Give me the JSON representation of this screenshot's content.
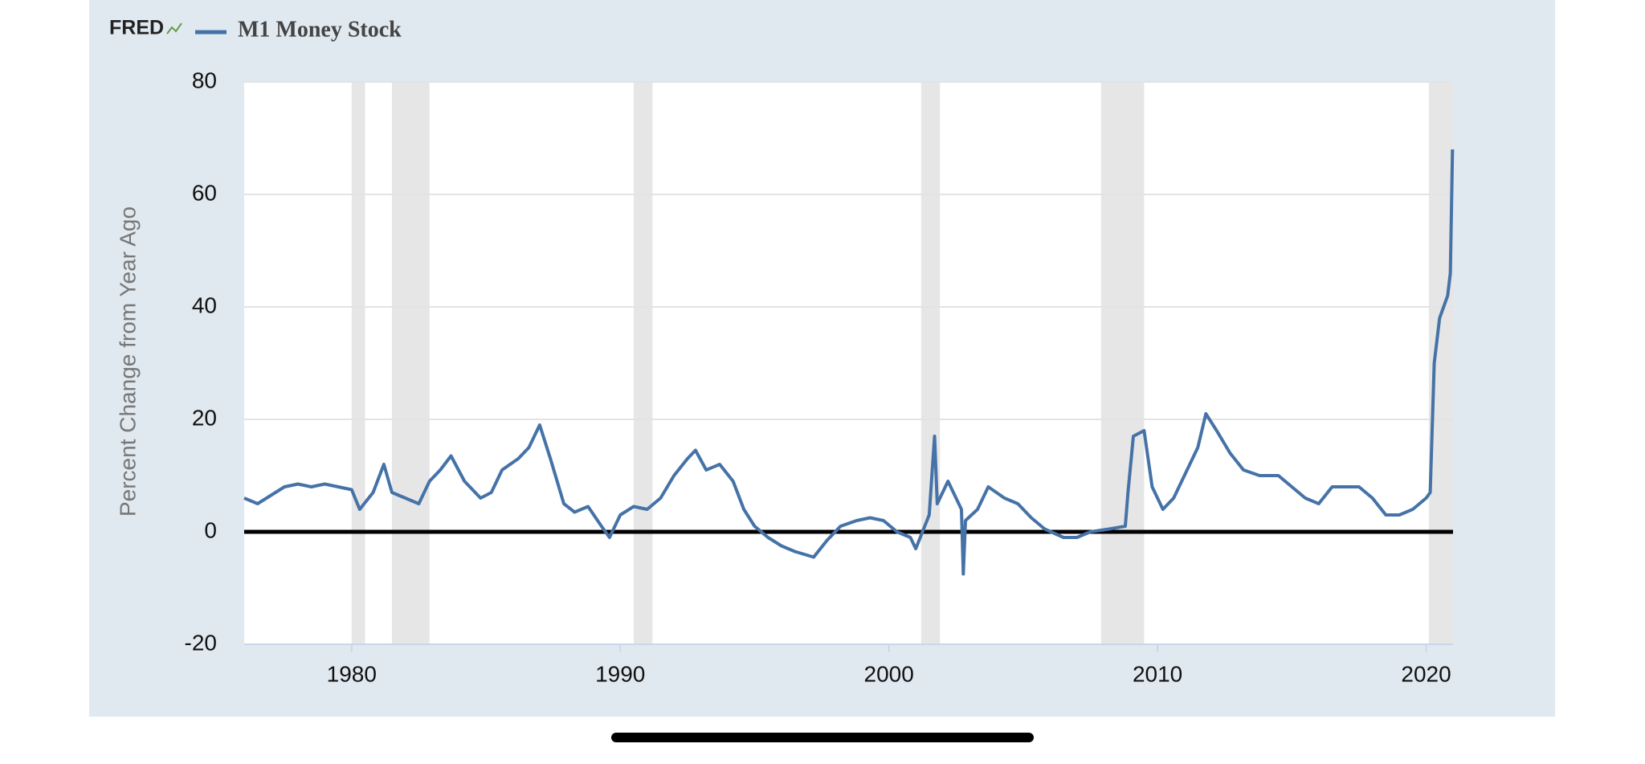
{
  "brand": "FRED",
  "chart_data": {
    "type": "line",
    "ylabel": "Percent Change from Year Ago",
    "xlim": [
      1976,
      2021
    ],
    "xticks": [
      1980,
      1990,
      2000,
      2010,
      2020
    ],
    "ylim": [
      -20,
      80
    ],
    "yticks": [
      -20,
      0,
      20,
      40,
      60,
      80
    ],
    "grid": true,
    "recessions": [
      [
        1980.0,
        1980.5
      ],
      [
        1981.5,
        1982.9
      ],
      [
        1990.5,
        1991.2
      ],
      [
        2001.2,
        2001.9
      ],
      [
        2007.9,
        2009.5
      ],
      [
        2020.1,
        2021
      ]
    ],
    "series": [
      {
        "name": "M1 Money Stock",
        "color": "#4572a7",
        "x": [
          1976.0,
          1976.5,
          1977.0,
          1977.5,
          1978.0,
          1978.5,
          1979.0,
          1979.5,
          1980.0,
          1980.3,
          1980.8,
          1981.2,
          1981.5,
          1982.0,
          1982.5,
          1982.9,
          1983.3,
          1983.7,
          1984.2,
          1984.8,
          1985.2,
          1985.6,
          1986.2,
          1986.6,
          1987.0,
          1987.4,
          1987.9,
          1988.3,
          1988.8,
          1989.3,
          1989.6,
          1990.0,
          1990.5,
          1991.0,
          1991.5,
          1992.0,
          1992.5,
          1992.8,
          1993.2,
          1993.7,
          1994.2,
          1994.6,
          1995.0,
          1995.5,
          1996.0,
          1996.5,
          1997.2,
          1997.7,
          1998.2,
          1998.8,
          1999.3,
          1999.8,
          2000.3,
          2000.8,
          2001.0,
          2001.5,
          2001.7,
          2001.8,
          2002.2,
          2002.7,
          2002.77,
          2002.85,
          2003.3,
          2003.7,
          2004.3,
          2004.8,
          2005.3,
          2005.8,
          2006.5,
          2007.0,
          2007.5,
          2008.2,
          2008.8,
          2008.9,
          2009.1,
          2009.5,
          2009.8,
          2010.2,
          2010.6,
          2011.0,
          2011.5,
          2011.8,
          2012.2,
          2012.7,
          2013.2,
          2013.8,
          2014.5,
          2015.0,
          2015.5,
          2016.0,
          2016.5,
          2017.0,
          2017.5,
          2018.0,
          2018.5,
          2019.0,
          2019.5,
          2020.0,
          2020.15,
          2020.3,
          2020.5,
          2020.8,
          2020.9,
          2020.98
        ],
        "values": [
          6,
          5,
          6.5,
          8,
          8.5,
          8,
          8.5,
          8,
          7.5,
          4,
          7,
          12,
          7,
          6,
          5,
          9,
          11,
          13.5,
          9,
          6,
          7,
          11,
          13,
          15,
          19,
          13,
          5,
          3.5,
          4.5,
          1,
          -1,
          3,
          4.5,
          4,
          6,
          10,
          13,
          14.5,
          11,
          12,
          9,
          4,
          1,
          -1,
          -2.5,
          -3.5,
          -4.5,
          -1.5,
          1,
          2,
          2.5,
          2,
          0,
          -1,
          -3,
          3,
          17,
          5,
          9,
          4,
          -7.5,
          2,
          4,
          8,
          6,
          5,
          2.5,
          0.5,
          -1,
          -1,
          0,
          0.5,
          1,
          7,
          17,
          18,
          8,
          4,
          6,
          10,
          15,
          21,
          18,
          14,
          11,
          10,
          10,
          8,
          6,
          5,
          8,
          8,
          8,
          6,
          3,
          3,
          4,
          6,
          7,
          30,
          38,
          42,
          46,
          68
        ]
      }
    ]
  }
}
